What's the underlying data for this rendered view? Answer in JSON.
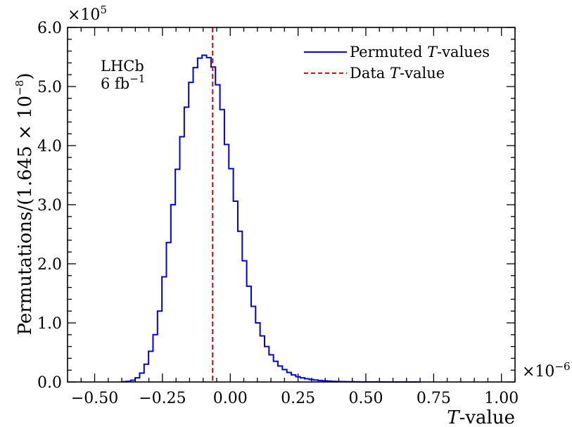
{
  "chart_data": {
    "type": "histogram",
    "xlabel_main": "T",
    "xlabel_rest": "-value",
    "ylabel_prefix": "Permutations/(1.645 × 10",
    "ylabel_exp": "−8",
    "ylabel_suffix": ")",
    "y_multiplier_base": "×10",
    "y_multiplier_exp": "5",
    "x_multiplier_base": "×10",
    "x_multiplier_exp": "−6",
    "xlim": [
      -0.6,
      1.05
    ],
    "ylim": [
      0.0,
      6.0
    ],
    "x_ticks": [
      -0.5,
      -0.25,
      0.0,
      0.25,
      0.5,
      0.75,
      1.0
    ],
    "x_tick_labels": [
      "−0.50",
      "−0.25",
      "0.00",
      "0.25",
      "0.50",
      "0.75",
      "1.00"
    ],
    "y_ticks": [
      0,
      1,
      2,
      3,
      4,
      5,
      6
    ],
    "y_tick_labels": [
      "0.0",
      "1.0",
      "2.0",
      "3.0",
      "4.0",
      "5.0",
      "6.0"
    ],
    "bin_start": -0.4,
    "bin_width": 0.01645,
    "counts": [
      0.005,
      0.01,
      0.03,
      0.07,
      0.15,
      0.3,
      0.52,
      0.8,
      1.2,
      1.78,
      2.36,
      3.0,
      3.6,
      4.15,
      4.65,
      5.07,
      5.32,
      5.48,
      5.53,
      5.49,
      5.33,
      5.03,
      4.61,
      4.02,
      3.61,
      3.06,
      2.55,
      2.05,
      1.62,
      1.28,
      1.0,
      0.78,
      0.6,
      0.46,
      0.35,
      0.27,
      0.21,
      0.16,
      0.12,
      0.09,
      0.07,
      0.055,
      0.042,
      0.032,
      0.025,
      0.019,
      0.015,
      0.011,
      0.008,
      0.006,
      0.005,
      0.004,
      0.003,
      0.002,
      0.002,
      0.001,
      0.001,
      0.001,
      0.0005,
      0.0005,
      0.0003,
      0.0002,
      0.0001,
      0.0001,
      0.0001,
      0.0001,
      0.0
    ],
    "data_value": -0.065,
    "series": [
      {
        "name_main": "Permuted ",
        "name_italic": "T",
        "name_rest": "-values",
        "color": "#0000dd",
        "style": "step"
      },
      {
        "name_main": "Data ",
        "name_italic": "T",
        "name_rest": "-value",
        "color": "#e8000b",
        "style": "dashed"
      }
    ],
    "legend_position": "top-right",
    "annotation_line1": "LHCb",
    "annotation_line2_base": "6 fb",
    "annotation_line2_exp": "−1"
  }
}
